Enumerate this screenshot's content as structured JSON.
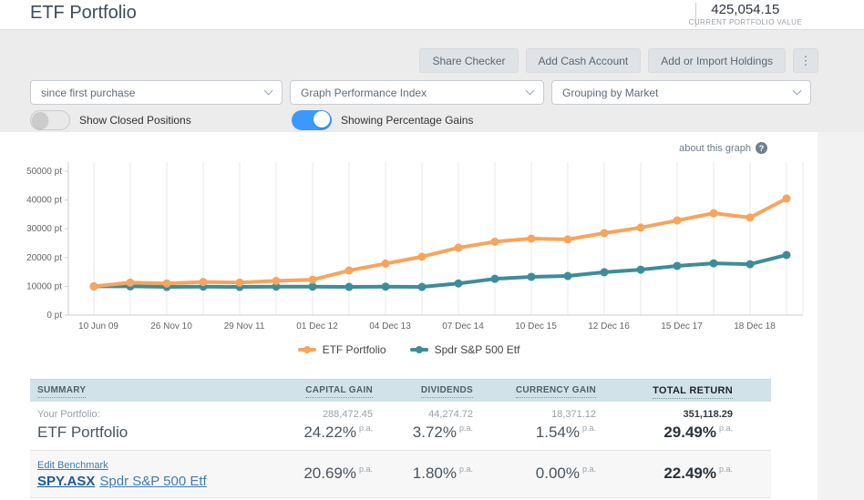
{
  "header": {
    "title": "ETF Portfolio",
    "portfolio_value": "425,054.15",
    "portfolio_value_label": "CURRENT PORTFOLIO VALUE"
  },
  "toolbar": {
    "share_checker": "Share Checker",
    "add_cash_account": "Add Cash Account",
    "add_import_holdings": "Add or Import Holdings",
    "more_label": "⋮"
  },
  "filters": {
    "dropdowns": [
      {
        "value": "since first purchase"
      },
      {
        "value": "Graph Performance Index"
      },
      {
        "value": "Grouping by Market"
      }
    ],
    "toggles": [
      {
        "label": "Show Closed Positions",
        "on": false
      },
      {
        "label": "Showing Percentage Gains",
        "on": true
      }
    ]
  },
  "chart": {
    "about_link": "about this graph",
    "help_icon": "?"
  },
  "chart_data": {
    "type": "line",
    "ylim": [
      0,
      50000
    ],
    "grid": true,
    "legend_position": "bottom",
    "y_ticks": [
      {
        "value": 0,
        "label": "0 pt"
      },
      {
        "value": 10000,
        "label": "10000 pt"
      },
      {
        "value": 20000,
        "label": "20000 pt"
      },
      {
        "value": 30000,
        "label": "30000 pt"
      },
      {
        "value": 40000,
        "label": "40000 pt"
      },
      {
        "value": 50000,
        "label": "50000 pt"
      }
    ],
    "x_tick_labels": [
      "10 Jun 09",
      "26 Nov 10",
      "29 Nov 11",
      "01 Dec 12",
      "04 Dec 13",
      "07 Dec 14",
      "10 Dec 15",
      "12 Dec 16",
      "15 Dec 17",
      "18 Dec 18"
    ],
    "series": [
      {
        "name": "Spdr S&P 500 Etf",
        "color": "#3d8c99",
        "values": [
          10000,
          10000,
          9800,
          9900,
          9800,
          9900,
          9900,
          9800,
          9900,
          9800,
          11000,
          12600,
          13300,
          13600,
          14900,
          15800,
          17100,
          18000,
          17700,
          20900
        ]
      },
      {
        "name": "ETF Portfolio",
        "color": "#f7a45c",
        "values": [
          10000,
          11300,
          11000,
          11500,
          11300,
          11900,
          12300,
          15500,
          17900,
          20300,
          23400,
          25500,
          26600,
          26300,
          28500,
          30400,
          32900,
          35400,
          33900,
          40500
        ]
      }
    ],
    "legend_order": [
      "ETF Portfolio",
      "Spdr S&P 500 Etf"
    ]
  },
  "table": {
    "pa_label": "p.a.",
    "headers": {
      "summary": "SUMMARY",
      "capital_gain": "CAPITAL GAIN",
      "dividends": "DIVIDENDS",
      "currency_gain": "CURRENCY GAIN",
      "total_return": "TOTAL RETURN"
    },
    "portfolio_row": {
      "label_small": "Your Portfolio:",
      "label": "ETF Portfolio",
      "capital_gain_value": "288,472.45",
      "capital_gain_pct": "24.22%",
      "dividends_value": "44,274.72",
      "dividends_pct": "3.72%",
      "currency_gain_value": "18,371.12",
      "currency_gain_pct": "1.54%",
      "total_return_value": "351,118.29",
      "total_return_pct": "29.49%"
    },
    "benchmark_row": {
      "edit_link": "Edit Benchmark",
      "code": "SPY.ASX",
      "name": "Spdr S&P 500 Etf",
      "capital_gain_pct": "20.69%",
      "dividends_pct": "1.80%",
      "currency_gain_pct": "0.00%",
      "total_return_pct": "22.49%"
    }
  }
}
